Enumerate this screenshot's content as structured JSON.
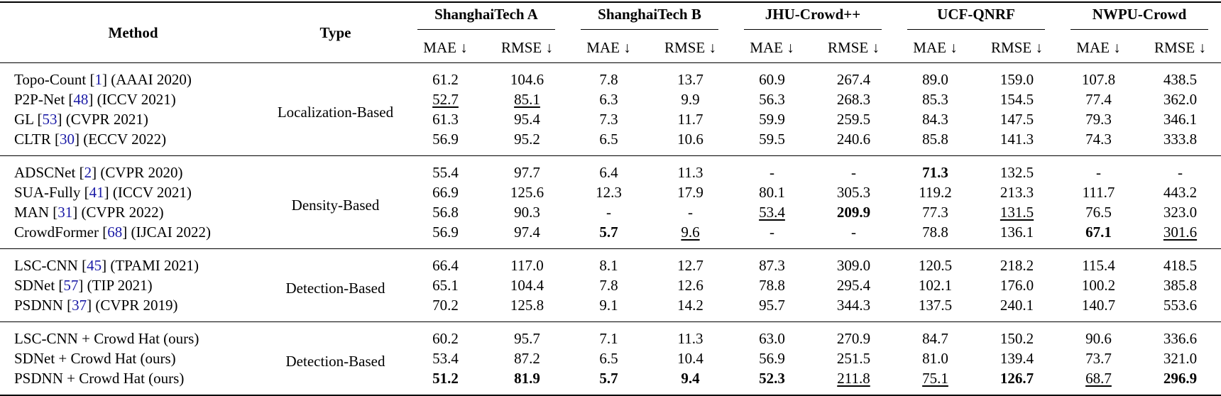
{
  "table": {
    "header": {
      "method": "Method",
      "type": "Type"
    },
    "datasets": [
      {
        "name": "ShanghaiTech A",
        "metrics": [
          "MAE ↓",
          "RMSE ↓"
        ]
      },
      {
        "name": "ShanghaiTech B",
        "metrics": [
          "MAE ↓",
          "RMSE ↓"
        ]
      },
      {
        "name": "JHU-Crowd++",
        "metrics": [
          "MAE ↓",
          "RMSE ↓"
        ]
      },
      {
        "name": "UCF-QNRF",
        "metrics": [
          "MAE ↓",
          "RMSE ↓"
        ]
      },
      {
        "name": "NWPU-Crowd",
        "metrics": [
          "MAE ↓",
          "RMSE ↓"
        ]
      }
    ],
    "groups": [
      {
        "type": "Localization-Based",
        "rows": [
          {
            "method": {
              "pre": "Topo-Count [",
              "ref": "1",
              "post": "] (AAAI 2020)"
            },
            "values": [
              "61.2",
              "104.6",
              "7.8",
              "13.7",
              "60.9",
              "267.4",
              "89.0",
              "159.0",
              "107.8",
              "438.5"
            ],
            "bold": [],
            "underline": []
          },
          {
            "method": {
              "pre": "P2P-Net [",
              "ref": "48",
              "post": "] (ICCV 2021)"
            },
            "values": [
              "52.7",
              "85.1",
              "6.3",
              "9.9",
              "56.3",
              "268.3",
              "85.3",
              "154.5",
              "77.4",
              "362.0"
            ],
            "bold": [],
            "underline": [
              0,
              1
            ]
          },
          {
            "method": {
              "pre": "GL [",
              "ref": "53",
              "post": "] (CVPR 2021)"
            },
            "values": [
              "61.3",
              "95.4",
              "7.3",
              "11.7",
              "59.9",
              "259.5",
              "84.3",
              "147.5",
              "79.3",
              "346.1"
            ],
            "bold": [],
            "underline": []
          },
          {
            "method": {
              "pre": "CLTR [",
              "ref": "30",
              "post": "] (ECCV 2022)"
            },
            "values": [
              "56.9",
              "95.2",
              "6.5",
              "10.6",
              "59.5",
              "240.6",
              "85.8",
              "141.3",
              "74.3",
              "333.8"
            ],
            "bold": [],
            "underline": []
          }
        ]
      },
      {
        "type": "Density-Based",
        "rows": [
          {
            "method": {
              "pre": "ADSCNet [",
              "ref": "2",
              "post": "] (CVPR 2020)"
            },
            "values": [
              "55.4",
              "97.7",
              "6.4",
              "11.3",
              "-",
              "-",
              "71.3",
              "132.5",
              "-",
              "-"
            ],
            "bold": [
              6
            ],
            "underline": []
          },
          {
            "method": {
              "pre": "SUA-Fully [",
              "ref": "41",
              "post": "] (ICCV 2021)"
            },
            "values": [
              "66.9",
              "125.6",
              "12.3",
              "17.9",
              "80.1",
              "305.3",
              "119.2",
              "213.3",
              "111.7",
              "443.2"
            ],
            "bold": [],
            "underline": []
          },
          {
            "method": {
              "pre": "MAN [",
              "ref": "31",
              "post": "] (CVPR 2022)"
            },
            "values": [
              "56.8",
              "90.3",
              "-",
              "-",
              "53.4",
              "209.9",
              "77.3",
              "131.5",
              "76.5",
              "323.0"
            ],
            "bold": [
              5
            ],
            "underline": [
              4,
              7
            ]
          },
          {
            "method": {
              "pre": "CrowdFormer [",
              "ref": "68",
              "post": "] (IJCAI 2022)"
            },
            "values": [
              "56.9",
              "97.4",
              "5.7",
              "9.6",
              "-",
              "-",
              "78.8",
              "136.1",
              "67.1",
              "301.6"
            ],
            "bold": [
              2,
              8
            ],
            "underline": [
              3,
              9
            ]
          }
        ]
      },
      {
        "type": "Detection-Based",
        "rows": [
          {
            "method": {
              "pre": "LSC-CNN [",
              "ref": "45",
              "post": "] (TPAMI 2021)"
            },
            "values": [
              "66.4",
              "117.0",
              "8.1",
              "12.7",
              "87.3",
              "309.0",
              "120.5",
              "218.2",
              "115.4",
              "418.5"
            ],
            "bold": [],
            "underline": []
          },
          {
            "method": {
              "pre": "SDNet [",
              "ref": "57",
              "post": "] (TIP 2021)"
            },
            "values": [
              "65.1",
              "104.4",
              "7.8",
              "12.6",
              "78.8",
              "295.4",
              "102.1",
              "176.0",
              "100.2",
              "385.8"
            ],
            "bold": [],
            "underline": []
          },
          {
            "method": {
              "pre": "PSDNN [",
              "ref": "37",
              "post": "] (CVPR 2019)"
            },
            "values": [
              "70.2",
              "125.8",
              "9.1",
              "14.2",
              "95.7",
              "344.3",
              "137.5",
              "240.1",
              "140.7",
              "553.6"
            ],
            "bold": [],
            "underline": []
          }
        ]
      },
      {
        "type": "Detection-Based",
        "rows": [
          {
            "method": {
              "pre": "LSC-CNN + Crowd Hat (ours)"
            },
            "values": [
              "60.2",
              "95.7",
              "7.1",
              "11.3",
              "63.0",
              "270.9",
              "84.7",
              "150.2",
              "90.6",
              "336.6"
            ],
            "bold": [],
            "underline": []
          },
          {
            "method": {
              "pre": "SDNet + Crowd Hat (ours)"
            },
            "values": [
              "53.4",
              "87.2",
              "6.5",
              "10.4",
              "56.9",
              "251.5",
              "81.0",
              "139.4",
              "73.7",
              "321.0"
            ],
            "bold": [],
            "underline": []
          },
          {
            "method": {
              "pre": "PSDNN + Crowd Hat (ours)"
            },
            "values": [
              "51.2",
              "81.9",
              "5.7",
              "9.4",
              "52.3",
              "211.8",
              "75.1",
              "126.7",
              "68.7",
              "296.9"
            ],
            "bold": [
              0,
              1,
              2,
              3,
              4,
              7,
              9
            ],
            "underline": [
              5,
              6,
              8
            ]
          }
        ]
      }
    ]
  }
}
